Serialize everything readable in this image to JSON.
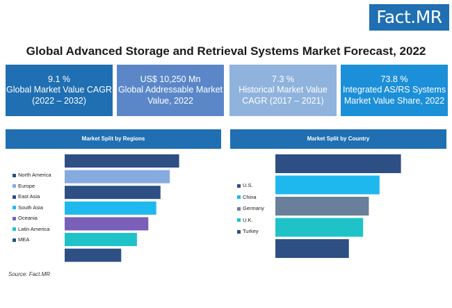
{
  "logo": {
    "text_a": "Fact",
    "text_b": ".MR"
  },
  "title": "Global Advanced Storage and Retrieval Systems Market Forecast, 2022",
  "kpis": [
    {
      "value": "9.1 %",
      "label": "Global Market Value CAGR (2022 – 2032)",
      "color": "#1f6fb2"
    },
    {
      "value": "US$ 10,250 Mn",
      "label": "Global Addressable Market Value, 2022",
      "color": "#5b87c9"
    },
    {
      "value": "7.3 %",
      "label": "Historical Market Value CAGR (2017 – 2021)",
      "color": "#8fb3dd"
    },
    {
      "value": "73.8 %",
      "label": "Integrated AS/RS Systems Market Value Share, 2022",
      "color": "#1c8fd9"
    }
  ],
  "source": "Source: Fact.MR",
  "chart_data": [
    {
      "type": "bar",
      "orientation": "horizontal",
      "title": "Market Split by Regions",
      "categories": [
        "North America",
        "Europe",
        "East Asia",
        "South Asia",
        "Oceania",
        "Latin America",
        "MEA"
      ],
      "values": [
        160,
        147,
        134,
        128,
        117,
        101,
        79
      ],
      "colors": [
        "#2d4f83",
        "#86abdf",
        "#2d4f83",
        "#1fb8ee",
        "#7a5fb8",
        "#1fc3c7",
        "#2d4f83"
      ],
      "legend_colors": [
        "#2d4f83",
        "#86abdf",
        "#2d4f83",
        "#1fb8ee",
        "#7a5fb8",
        "#1fc3c7",
        "#2d4f83"
      ],
      "xlabel": "",
      "ylabel": "",
      "xlim": [
        0,
        175
      ],
      "grid": false,
      "legend": "left"
    },
    {
      "type": "bar",
      "orientation": "horizontal",
      "title": "Market Split by Country",
      "categories": [
        "U.S.",
        "China",
        "Germany",
        "U.K.",
        "Turkey"
      ],
      "values": [
        176,
        146,
        131,
        123,
        103
      ],
      "colors": [
        "#2d4f83",
        "#1fb8ee",
        "#6a7f99",
        "#1fc3c7",
        "#2d4f83"
      ],
      "legend_colors": [
        "#2d4f83",
        "#1fb8ee",
        "#6a7f99",
        "#1fc3c7",
        "#2d4f83"
      ],
      "xlabel": "",
      "ylabel": "",
      "xlim": [
        0,
        190
      ],
      "grid": false,
      "legend": "left"
    }
  ],
  "panel_head_color": "#1f6fb2"
}
